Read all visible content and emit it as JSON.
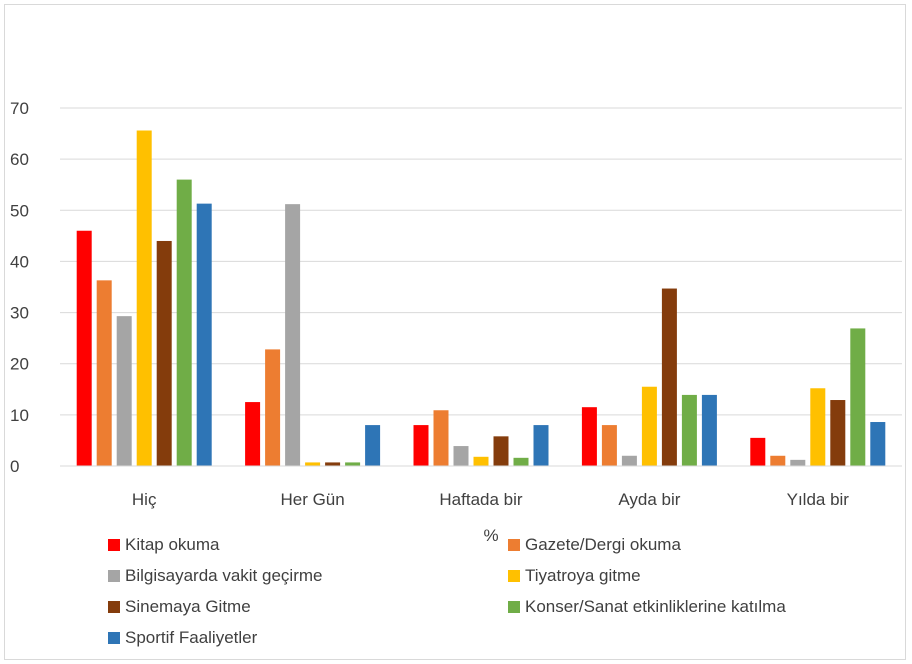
{
  "chart_data": {
    "type": "bar",
    "xlabel": "%",
    "ylabel": "",
    "ylim": [
      0,
      70
    ],
    "yticks": [
      0,
      10,
      20,
      30,
      40,
      50,
      60,
      70
    ],
    "grid": true,
    "legend_position": "bottom",
    "categories": [
      "Hiç",
      "Her Gün",
      "Haftada bir",
      "Ayda bir",
      "Yılda bir"
    ],
    "series": [
      {
        "name": "Kitap okuma",
        "color": "#ff0000",
        "values": [
          46,
          12.5,
          8,
          11.5,
          5.5
        ]
      },
      {
        "name": "Gazete/Dergi okuma",
        "color": "#ed7d31",
        "values": [
          36.3,
          22.8,
          10.9,
          8,
          2
        ]
      },
      {
        "name": "Bilgisayarda vakit geçirme",
        "color": "#a5a5a5",
        "values": [
          29.3,
          51.2,
          3.9,
          2,
          1.2
        ]
      },
      {
        "name": "Tiyatroya gitme",
        "color": "#ffc000",
        "values": [
          65.6,
          0.7,
          1.8,
          15.5,
          15.2
        ]
      },
      {
        "name": "Sinemaya Gitme",
        "color": "#843c0c",
        "values": [
          44,
          0.7,
          5.8,
          34.7,
          12.9
        ]
      },
      {
        "name": "Konser/Sanat etkinliklerine katılma",
        "color": "#70ad47",
        "values": [
          56,
          0.7,
          1.6,
          13.9,
          26.9
        ]
      },
      {
        "name": "Sportif Faaliyetler",
        "color": "#2e75b6",
        "values": [
          51.3,
          8,
          8,
          13.9,
          8.6
        ]
      }
    ]
  }
}
